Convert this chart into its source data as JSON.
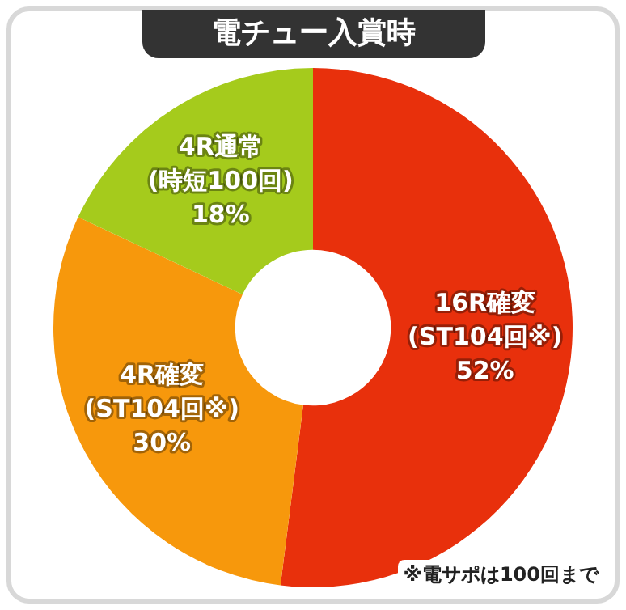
{
  "chart_data": {
    "type": "donut",
    "title": "電チュー入賞時",
    "categories": [
      "16R確変 (ST104回※)",
      "4R確変 (ST104回※)",
      "4R通常 (時短100回)"
    ],
    "values": [
      52,
      30,
      18
    ],
    "value_labels": [
      "52%",
      "30%",
      "18%"
    ],
    "colors": [
      "#e8300c",
      "#f7980c",
      "#a5cb1c"
    ],
    "legend": false,
    "annotations": [
      "※電サポは100回まで"
    ]
  }
}
